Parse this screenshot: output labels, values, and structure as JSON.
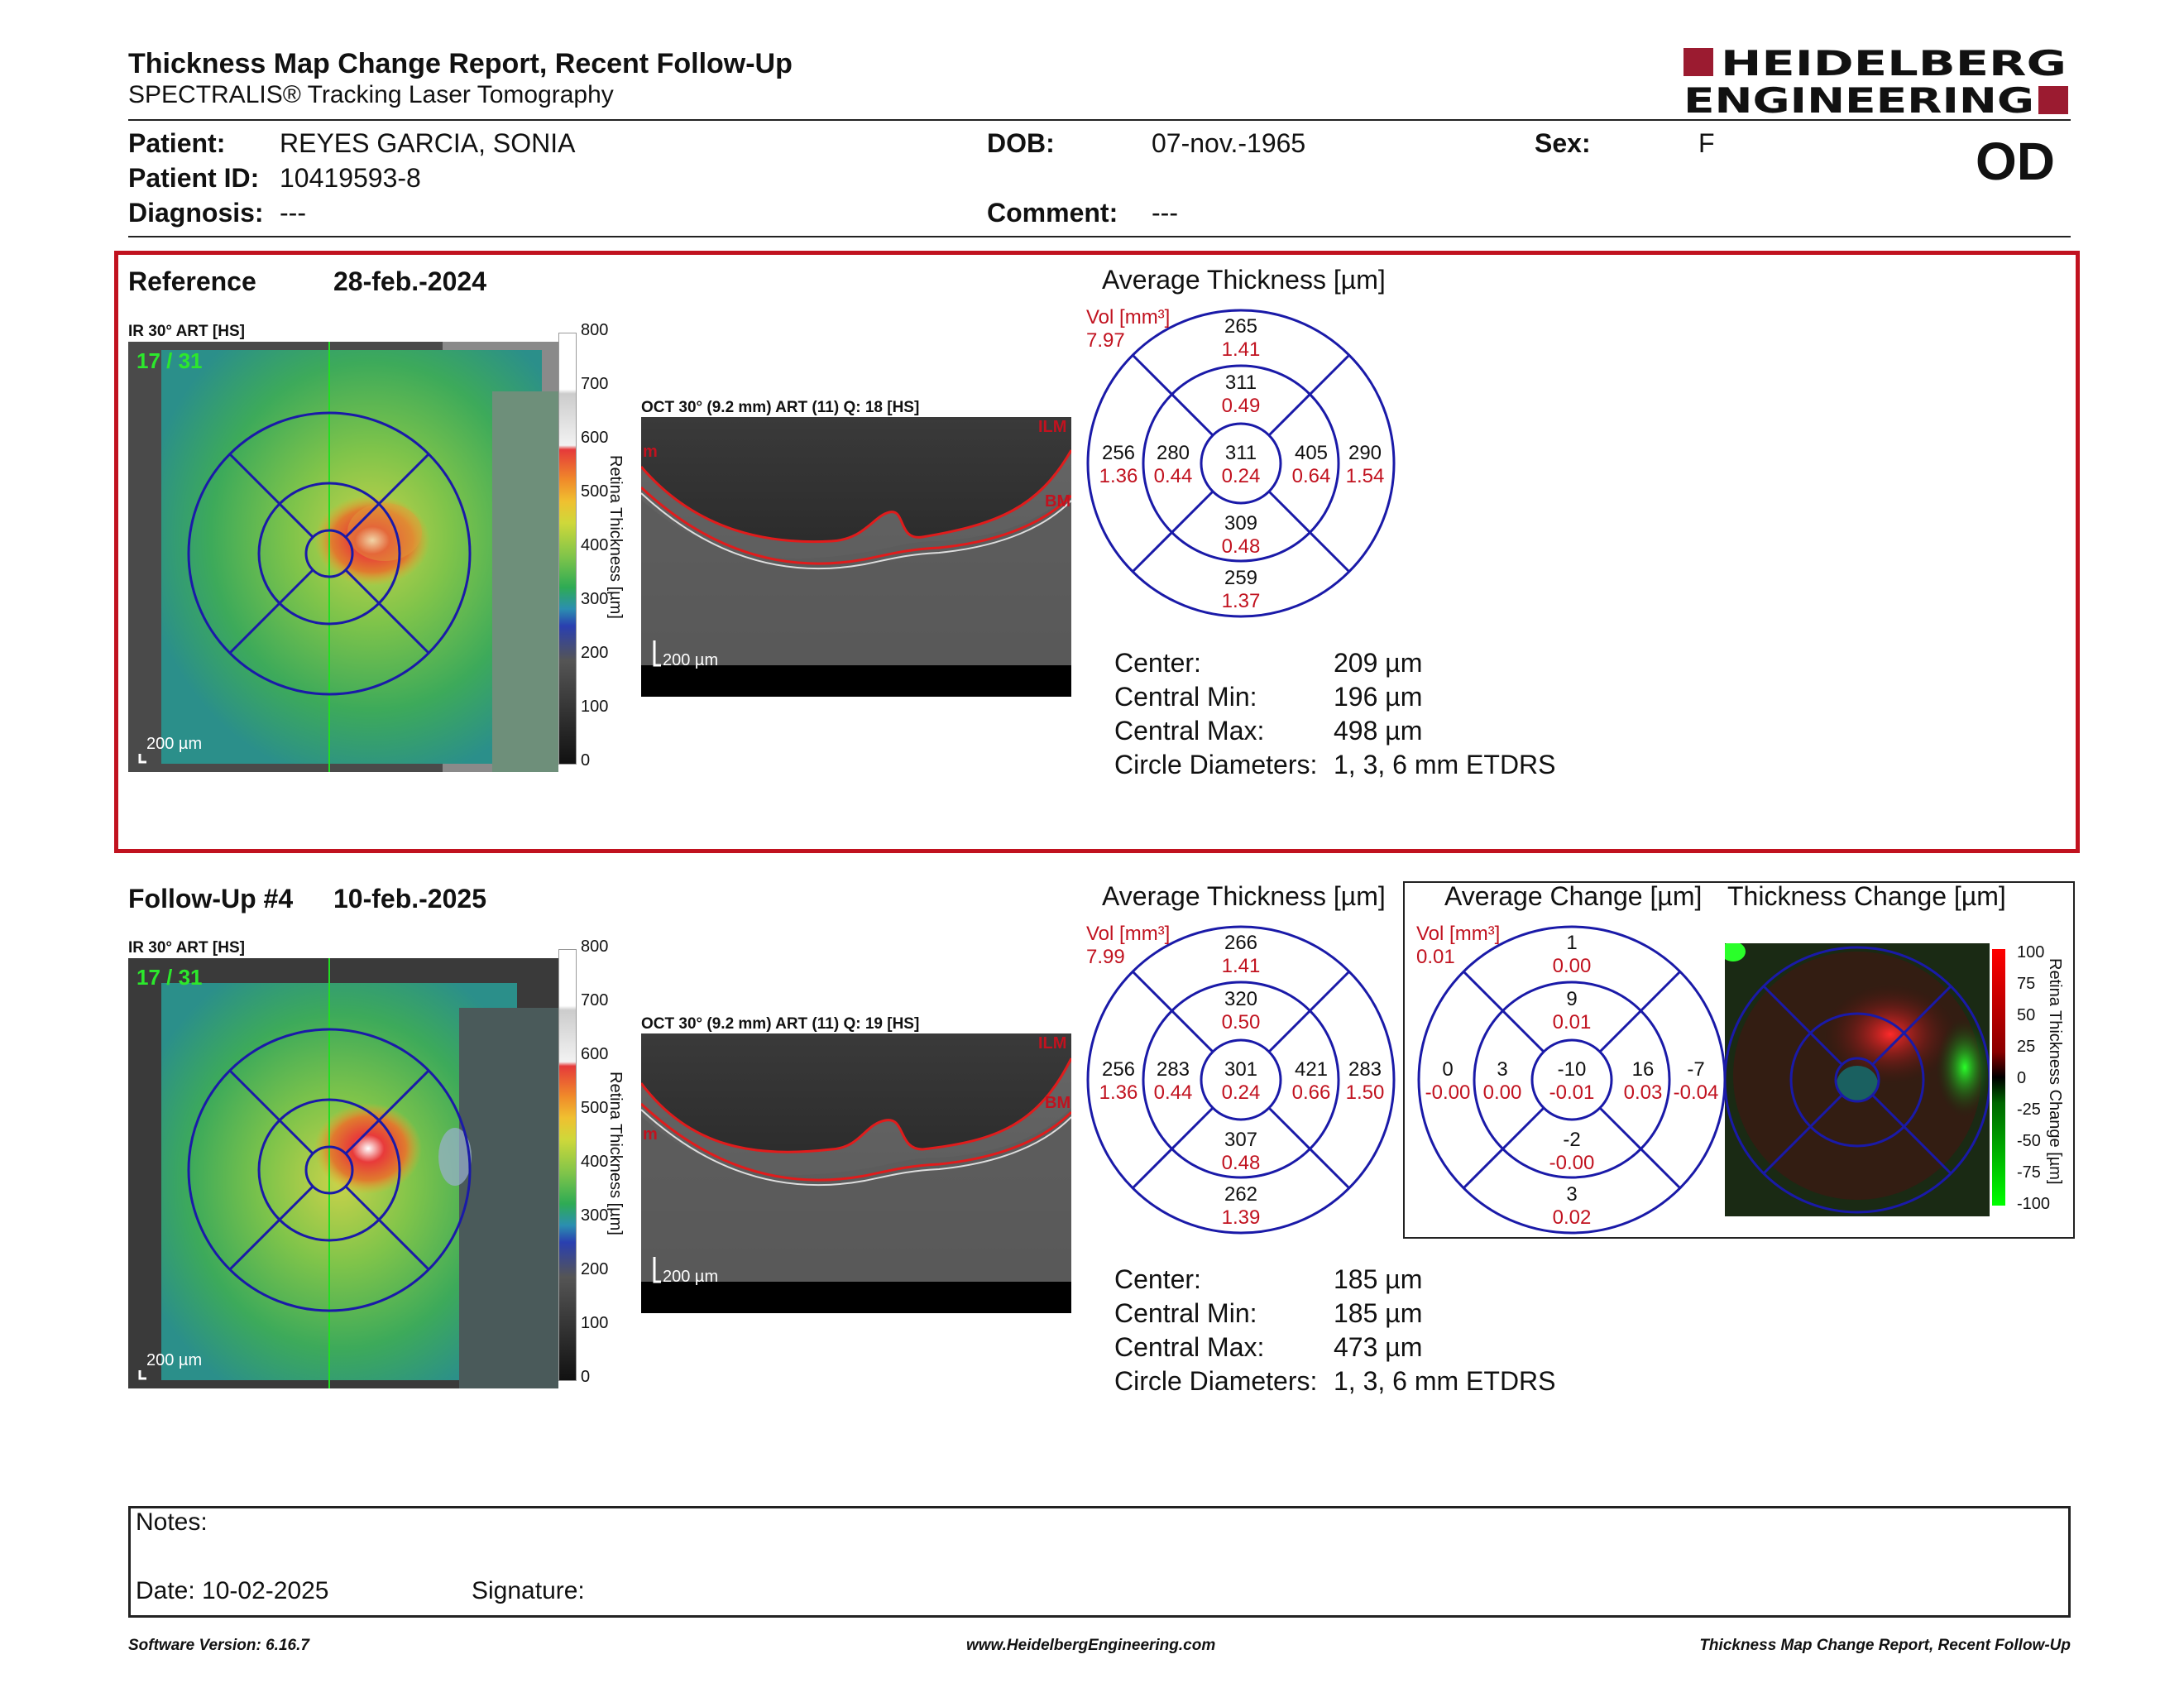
{
  "header": {
    "title": "Thickness Map Change Report, Recent Follow-Up",
    "subtitle": "SPECTRALIS® Tracking Laser Tomography",
    "logo_line1": "HEIDELBERG",
    "logo_line2": "ENGINEERING",
    "eye": "OD"
  },
  "patient": {
    "patient_label": "Patient:",
    "patient_value": "REYES GARCIA, SONIA",
    "id_label": "Patient ID:",
    "id_value": "10419593-8",
    "diagnosis_label": "Diagnosis:",
    "diagnosis_value": "---",
    "dob_label": "DOB:",
    "dob_value": "07-nov.-1965",
    "comment_label": "Comment:",
    "comment_value": "---",
    "sex_label": "Sex:",
    "sex_value": "F"
  },
  "reference": {
    "label": "Reference",
    "date": "28-feb.-2024",
    "ir_label": "IR 30° ART [HS]",
    "frames": "17 / 31",
    "scale": "200 µm",
    "oct_label": "OCT 30° (9.2 mm) ART (11) Q: 18 [HS]",
    "oct_scale": "200 µm",
    "ilm": "ILM",
    "bm": "BM",
    "m": "m",
    "avg_title": "Average Thickness [µm]",
    "vol_label": "Vol [mm³]",
    "vol_value": "7.97",
    "etdrs": {
      "outer_sup": [
        "265",
        "1.41"
      ],
      "inner_sup": [
        "311",
        "0.49"
      ],
      "outer_temp": [
        "256",
        "1.36"
      ],
      "inner_temp": [
        "280",
        "0.44"
      ],
      "center": [
        "311",
        "0.24"
      ],
      "inner_nas": [
        "405",
        "0.64"
      ],
      "outer_nas": [
        "290",
        "1.54"
      ],
      "inner_inf": [
        "309",
        "0.48"
      ],
      "outer_inf": [
        "259",
        "1.37"
      ]
    },
    "stats": [
      {
        "label": "Center:",
        "value": "209 µm"
      },
      {
        "label": "Central Min:",
        "value": "196 µm"
      },
      {
        "label": "Central Max:",
        "value": "498 µm"
      },
      {
        "label": "Circle Diameters:",
        "value": "1, 3, 6 mm ETDRS"
      }
    ]
  },
  "followup": {
    "label": "Follow-Up #4",
    "date": "10-feb.-2025",
    "ir_label": "IR 30° ART [HS]",
    "frames": "17 / 31",
    "scale": "200 µm",
    "oct_label": "OCT 30° (9.2 mm) ART (11) Q: 19 [HS]",
    "oct_scale": "200 µm",
    "ilm": "ILM",
    "bm": "BM",
    "m": "m",
    "avg_title": "Average Thickness [µm]",
    "vol_label": "Vol [mm³]",
    "vol_value": "7.99",
    "etdrs": {
      "outer_sup": [
        "266",
        "1.41"
      ],
      "inner_sup": [
        "320",
        "0.50"
      ],
      "outer_temp": [
        "256",
        "1.36"
      ],
      "inner_temp": [
        "283",
        "0.44"
      ],
      "center": [
        "301",
        "0.24"
      ],
      "inner_nas": [
        "421",
        "0.66"
      ],
      "outer_nas": [
        "283",
        "1.50"
      ],
      "inner_inf": [
        "307",
        "0.48"
      ],
      "outer_inf": [
        "262",
        "1.39"
      ]
    },
    "stats": [
      {
        "label": "Center:",
        "value": "185 µm"
      },
      {
        "label": "Central Min:",
        "value": "185 µm"
      },
      {
        "label": "Central Max:",
        "value": "473 µm"
      },
      {
        "label": "Circle Diameters:",
        "value": "1, 3, 6 mm ETDRS"
      }
    ],
    "change_title": "Average Change [µm]",
    "change_vol_label": "Vol [mm³]",
    "change_vol_value": "0.01",
    "change_etdrs": {
      "outer_sup": [
        "1",
        "0.00"
      ],
      "inner_sup": [
        "9",
        "0.01"
      ],
      "outer_temp": [
        "0",
        "-0.00"
      ],
      "inner_temp": [
        "3",
        "0.00"
      ],
      "center": [
        "-10",
        "-0.01"
      ],
      "inner_nas": [
        "16",
        "0.03"
      ],
      "outer_nas": [
        "-7",
        "-0.04"
      ],
      "inner_inf": [
        "-2",
        "-0.00"
      ],
      "outer_inf": [
        "3",
        "0.02"
      ]
    },
    "thickness_change_title": "Thickness Change [µm]",
    "change_axis_label": "Retina Thickness Change [µm]",
    "change_ticks": [
      "100",
      "75",
      "50",
      "25",
      "0",
      "-25",
      "-50",
      "-75",
      "-100"
    ]
  },
  "colorbar": {
    "axis_label": "Retina Thickness [µm]",
    "ticks": [
      "800",
      "700",
      "600",
      "500",
      "400",
      "300",
      "200",
      "100",
      "0"
    ]
  },
  "notes": {
    "notes_label": "Notes:",
    "date_label": "Date: 10-02-2025",
    "signature_label": "Signature:"
  },
  "footer": {
    "left": "Software Version: 6.16.7",
    "center": "www.HeidelbergEngineering.com",
    "right": "Thickness Map Change Report, Recent Follow-Up"
  },
  "colors": {
    "accent_red": "#c1121f",
    "etdrs_blue": "#1a1aa8",
    "logo_red": "#9b1b30"
  }
}
